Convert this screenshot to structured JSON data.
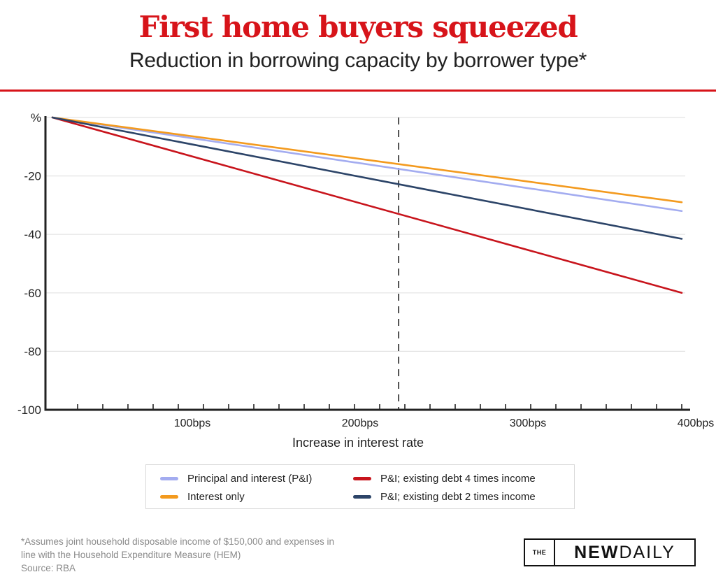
{
  "header": {
    "title": "First home buyers squeezed",
    "subtitle": "Reduction in borrowing capacity by borrower type*"
  },
  "chart_data": {
    "type": "line",
    "title": "First home buyers squeezed",
    "subtitle": "Reduction in borrowing capacity by borrower type*",
    "xlabel": "Increase in interest rate",
    "ylabel": "%",
    "x": [
      0,
      400
    ],
    "xlim": [
      0,
      400
    ],
    "ylim": [
      -100,
      0
    ],
    "xticks": [
      {
        "value": 100,
        "label": "100bps"
      },
      {
        "value": 200,
        "label": "200bps"
      },
      {
        "value": 300,
        "label": "300bps"
      },
      {
        "value": 400,
        "label": "400bps"
      }
    ],
    "yticks": [
      {
        "value": 0,
        "label": "%"
      },
      {
        "value": -20,
        "label": "-20"
      },
      {
        "value": -40,
        "label": "-40"
      },
      {
        "value": -60,
        "label": "-60"
      },
      {
        "value": -80,
        "label": "-80"
      },
      {
        "value": -100,
        "label": "-100"
      }
    ],
    "minor_tick_step": 16,
    "grid": true,
    "reference_line_x": 223,
    "legend_position": "bottom",
    "series": [
      {
        "name": "Principal and interest (P&I)",
        "color": "#a3acf0",
        "values": [
          0,
          -32
        ]
      },
      {
        "name": "Interest only",
        "color": "#f39a1e",
        "values": [
          0,
          -29
        ]
      },
      {
        "name": "P&I; existing debt 4 times income",
        "color": "#c8141c",
        "values": [
          0,
          -60
        ]
      },
      {
        "name": "P&I; existing debt 2 times income",
        "color": "#2c4468",
        "values": [
          0,
          -41.5
        ]
      }
    ]
  },
  "legend": {
    "items": [
      {
        "label": "Principal and interest (P&I)",
        "color": "#a3acf0"
      },
      {
        "label": "Interest only",
        "color": "#f39a1e"
      },
      {
        "label": "P&I; existing debt 4 times income",
        "color": "#c8141c"
      },
      {
        "label": "P&I; existing debt 2 times income",
        "color": "#2c4468"
      }
    ]
  },
  "footnote": {
    "line1": "*Assumes joint household disposable income of $150,000 and expenses in",
    "line2": "line with the Household Expenditure Measure (HEM)",
    "source": "Source: RBA"
  },
  "logo": {
    "the": "THE",
    "new": "NEW",
    "daily": "DAILY"
  }
}
